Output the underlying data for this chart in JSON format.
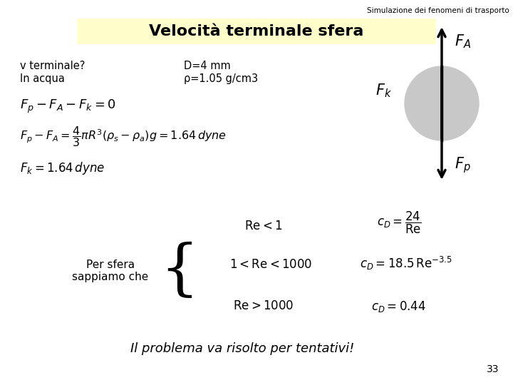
{
  "header_text": "Simulazione dei fenomeni di trasporto",
  "title": "Velocità terminale sfera",
  "title_bg": "#ffffcc",
  "left_info_line1": "v terminale?",
  "left_info_line2": "In acqua",
  "right_info_line1": "D=4 mm",
  "right_info_line2": "ρ=1.05 g/cm3",
  "eq1": "$F_p - F_A - F_k = 0$",
  "eq2": "$F_p - F_A = \\dfrac{4}{3}\\pi R^3\\left(\\rho_s - \\rho_a\\right)g = 1.64\\,dyne$",
  "eq3": "$F_k = 1.64\\,dyne$",
  "label_per_sfera": "Per sfera\nsappiamo che",
  "re_eq1_left": "$\\mathrm{Re} < 1$",
  "re_eq1_right": "$c_D = \\dfrac{24}{\\mathrm{Re}}$",
  "re_eq2_left": "$1 < \\mathrm{Re} < 1000$",
  "re_eq2_right": "$c_D = 18.5\\,\\mathrm{Re}^{-3.5}$",
  "re_eq3_left": "$\\mathrm{Re} > 1000$",
  "re_eq3_right": "$c_D = 0.44$",
  "bottom_text": "Il problema va risolto per tentativi!",
  "page_number": "33",
  "sphere_color": "#c8c8c8",
  "bg_color": "#ffffff",
  "text_color": "#000000"
}
